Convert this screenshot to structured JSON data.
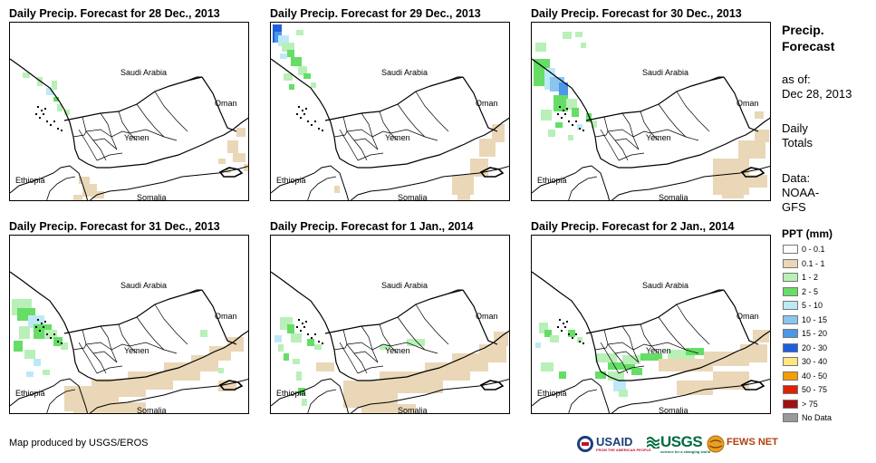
{
  "panels": [
    {
      "title": "Daily Precip. Forecast for 28 Dec., 2013",
      "day": 0
    },
    {
      "title": "Daily Precip. Forecast for 29 Dec., 2013",
      "day": 1
    },
    {
      "title": "Daily Precip. Forecast for 30 Dec., 2013",
      "day": 2
    },
    {
      "title": "Daily Precip. Forecast for 31 Dec., 2013",
      "day": 3
    },
    {
      "title": "Daily Precip. Forecast for 1 Jan., 2014",
      "day": 4
    },
    {
      "title": "Daily Precip. Forecast for 2 Jan., 2014",
      "day": 5
    }
  ],
  "map_labels": {
    "saudi_arabia": "Saudi Arabia",
    "oman": "Oman",
    "yemen": "Yemen",
    "ethiopia": "Ethiopia",
    "somalia": "Somalia"
  },
  "sidebar": {
    "title_line1": "Precip.",
    "title_line2": "Forecast",
    "asof_line1": "as of:",
    "asof_line2": "Dec 28, 2013",
    "daily_line1": "Daily",
    "daily_line2": "Totals",
    "data_line1": "Data:",
    "data_line2": "NOAA-",
    "data_line3": "GFS"
  },
  "legend": {
    "title": "PPT (mm)",
    "items": [
      {
        "label": "0 - 0.1",
        "color": "#ffffff"
      },
      {
        "label": "0.1 - 1",
        "color": "#ead7b7"
      },
      {
        "label": "1 - 2",
        "color": "#b8f0b8"
      },
      {
        "label": "2 - 5",
        "color": "#66dd66"
      },
      {
        "label": "5 - 10",
        "color": "#bde9f7"
      },
      {
        "label": "10 - 15",
        "color": "#8cc4f0"
      },
      {
        "label": "15 - 20",
        "color": "#4d96e8"
      },
      {
        "label": "20 - 30",
        "color": "#1e5fe0"
      },
      {
        "label": "30 - 40",
        "color": "#ffe680"
      },
      {
        "label": "40 - 50",
        "color": "#f59c00"
      },
      {
        "label": "50 - 75",
        "color": "#e02000"
      },
      {
        "label": "> 75",
        "color": "#a01010"
      },
      {
        "label": "No Data",
        "color": "#999999"
      }
    ]
  },
  "credit": "Map produced by USGS/EROS",
  "logos": {
    "usaid": "USAID",
    "usaid_sub": "FROM THE AMERICAN PEOPLE",
    "usgs": "USGS",
    "usgs_sub": "science for a changing world",
    "fewsnet": "FEWS NET"
  }
}
